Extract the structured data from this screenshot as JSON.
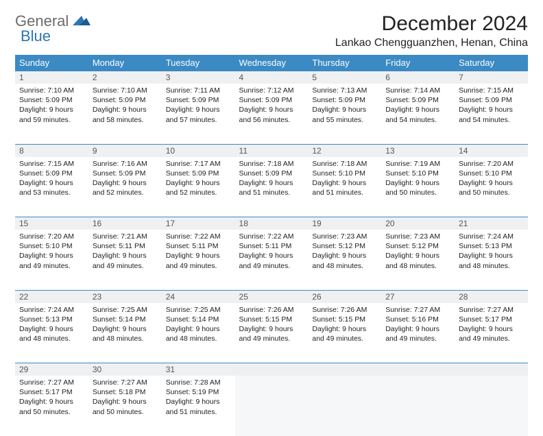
{
  "brand": {
    "general": "General",
    "blue": "Blue"
  },
  "title": "December 2024",
  "location": "Lankao Chengguanzhen, Henan, China",
  "colors": {
    "header_bg": "#3b8ac4",
    "header_text": "#ffffff",
    "daynum_bg": "#eef0f1",
    "border": "#3b8ac4",
    "logo_gray": "#6b6b6b",
    "logo_blue": "#2d76b5"
  },
  "weekdays": [
    "Sunday",
    "Monday",
    "Tuesday",
    "Wednesday",
    "Thursday",
    "Friday",
    "Saturday"
  ],
  "weeks": [
    [
      {
        "n": "1",
        "sr": "7:10 AM",
        "ss": "5:09 PM",
        "dl": "9 hours and 59 minutes."
      },
      {
        "n": "2",
        "sr": "7:10 AM",
        "ss": "5:09 PM",
        "dl": "9 hours and 58 minutes."
      },
      {
        "n": "3",
        "sr": "7:11 AM",
        "ss": "5:09 PM",
        "dl": "9 hours and 57 minutes."
      },
      {
        "n": "4",
        "sr": "7:12 AM",
        "ss": "5:09 PM",
        "dl": "9 hours and 56 minutes."
      },
      {
        "n": "5",
        "sr": "7:13 AM",
        "ss": "5:09 PM",
        "dl": "9 hours and 55 minutes."
      },
      {
        "n": "6",
        "sr": "7:14 AM",
        "ss": "5:09 PM",
        "dl": "9 hours and 54 minutes."
      },
      {
        "n": "7",
        "sr": "7:15 AM",
        "ss": "5:09 PM",
        "dl": "9 hours and 54 minutes."
      }
    ],
    [
      {
        "n": "8",
        "sr": "7:15 AM",
        "ss": "5:09 PM",
        "dl": "9 hours and 53 minutes."
      },
      {
        "n": "9",
        "sr": "7:16 AM",
        "ss": "5:09 PM",
        "dl": "9 hours and 52 minutes."
      },
      {
        "n": "10",
        "sr": "7:17 AM",
        "ss": "5:09 PM",
        "dl": "9 hours and 52 minutes."
      },
      {
        "n": "11",
        "sr": "7:18 AM",
        "ss": "5:09 PM",
        "dl": "9 hours and 51 minutes."
      },
      {
        "n": "12",
        "sr": "7:18 AM",
        "ss": "5:10 PM",
        "dl": "9 hours and 51 minutes."
      },
      {
        "n": "13",
        "sr": "7:19 AM",
        "ss": "5:10 PM",
        "dl": "9 hours and 50 minutes."
      },
      {
        "n": "14",
        "sr": "7:20 AM",
        "ss": "5:10 PM",
        "dl": "9 hours and 50 minutes."
      }
    ],
    [
      {
        "n": "15",
        "sr": "7:20 AM",
        "ss": "5:10 PM",
        "dl": "9 hours and 49 minutes."
      },
      {
        "n": "16",
        "sr": "7:21 AM",
        "ss": "5:11 PM",
        "dl": "9 hours and 49 minutes."
      },
      {
        "n": "17",
        "sr": "7:22 AM",
        "ss": "5:11 PM",
        "dl": "9 hours and 49 minutes."
      },
      {
        "n": "18",
        "sr": "7:22 AM",
        "ss": "5:11 PM",
        "dl": "9 hours and 49 minutes."
      },
      {
        "n": "19",
        "sr": "7:23 AM",
        "ss": "5:12 PM",
        "dl": "9 hours and 48 minutes."
      },
      {
        "n": "20",
        "sr": "7:23 AM",
        "ss": "5:12 PM",
        "dl": "9 hours and 48 minutes."
      },
      {
        "n": "21",
        "sr": "7:24 AM",
        "ss": "5:13 PM",
        "dl": "9 hours and 48 minutes."
      }
    ],
    [
      {
        "n": "22",
        "sr": "7:24 AM",
        "ss": "5:13 PM",
        "dl": "9 hours and 48 minutes."
      },
      {
        "n": "23",
        "sr": "7:25 AM",
        "ss": "5:14 PM",
        "dl": "9 hours and 48 minutes."
      },
      {
        "n": "24",
        "sr": "7:25 AM",
        "ss": "5:14 PM",
        "dl": "9 hours and 48 minutes."
      },
      {
        "n": "25",
        "sr": "7:26 AM",
        "ss": "5:15 PM",
        "dl": "9 hours and 49 minutes."
      },
      {
        "n": "26",
        "sr": "7:26 AM",
        "ss": "5:15 PM",
        "dl": "9 hours and 49 minutes."
      },
      {
        "n": "27",
        "sr": "7:27 AM",
        "ss": "5:16 PM",
        "dl": "9 hours and 49 minutes."
      },
      {
        "n": "28",
        "sr": "7:27 AM",
        "ss": "5:17 PM",
        "dl": "9 hours and 49 minutes."
      }
    ],
    [
      {
        "n": "29",
        "sr": "7:27 AM",
        "ss": "5:17 PM",
        "dl": "9 hours and 50 minutes."
      },
      {
        "n": "30",
        "sr": "7:27 AM",
        "ss": "5:18 PM",
        "dl": "9 hours and 50 minutes."
      },
      {
        "n": "31",
        "sr": "7:28 AM",
        "ss": "5:19 PM",
        "dl": "9 hours and 51 minutes."
      },
      null,
      null,
      null,
      null
    ]
  ],
  "labels": {
    "sunrise": "Sunrise:",
    "sunset": "Sunset:",
    "daylight": "Daylight:"
  }
}
